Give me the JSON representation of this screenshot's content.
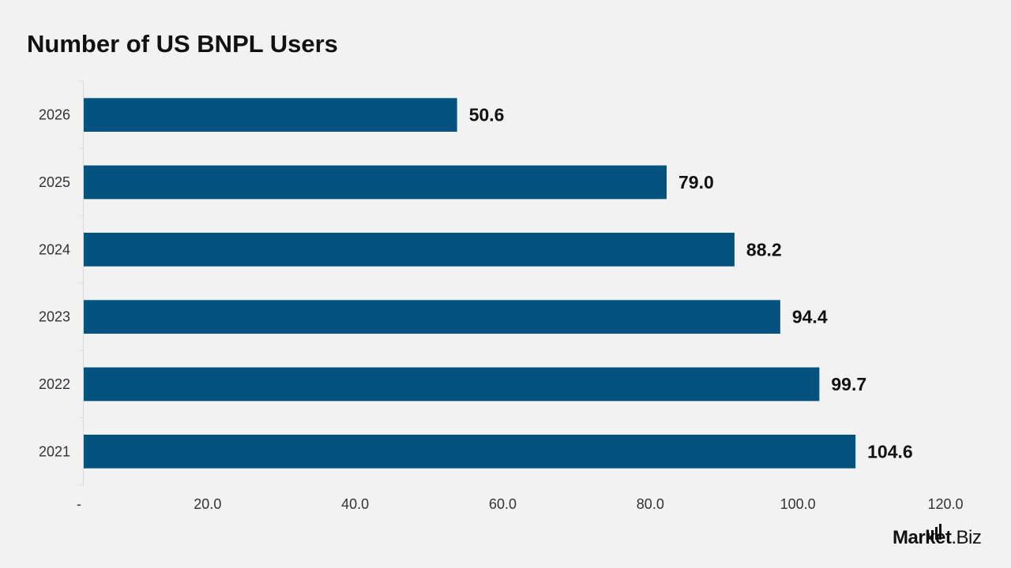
{
  "chart_data": {
    "type": "bar",
    "orientation": "horizontal",
    "title": "Number of US BNPL Users",
    "categories": [
      "2026",
      "2025",
      "2024",
      "2023",
      "2022",
      "2021"
    ],
    "values": [
      50.6,
      79.0,
      88.2,
      94.4,
      99.7,
      104.6
    ],
    "value_labels": [
      "50.6",
      "79.0",
      "88.2",
      "94.4",
      "99.7",
      "104.6"
    ],
    "x_ticks": [
      "-",
      "20.0",
      "40.0",
      "60.0",
      "80.0",
      "100.0",
      "120.0"
    ],
    "xlim": [
      0,
      120
    ],
    "xlabel": "",
    "ylabel": "",
    "grid": false,
    "bar_color": "#03527f"
  },
  "brand": {
    "logo_text_main": "Market",
    "logo_text_suffix": ".Biz"
  }
}
